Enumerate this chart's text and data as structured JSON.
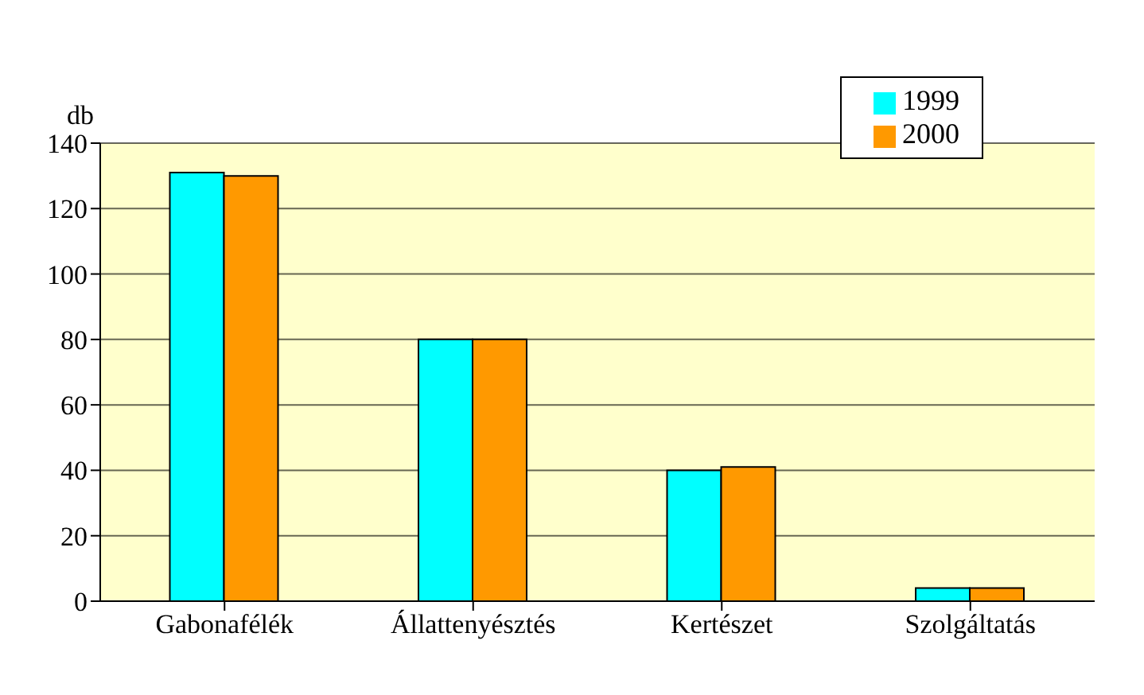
{
  "chart_data": {
    "type": "bar",
    "ylabel": "db",
    "categories": [
      "Gabonafélék",
      "Állattenyésztés",
      "Kertészet",
      "Szolgáltatás"
    ],
    "series": [
      {
        "name": "1999",
        "color": "#00ffff",
        "values": [
          131,
          80,
          40,
          4
        ]
      },
      {
        "name": "2000",
        "color": "#ff9900",
        "values": [
          130,
          80,
          41,
          4
        ]
      }
    ],
    "ylim": [
      0,
      140
    ],
    "yticks": [
      0,
      20,
      40,
      60,
      80,
      100,
      120,
      140
    ],
    "grid": "y",
    "legend": "top right"
  }
}
